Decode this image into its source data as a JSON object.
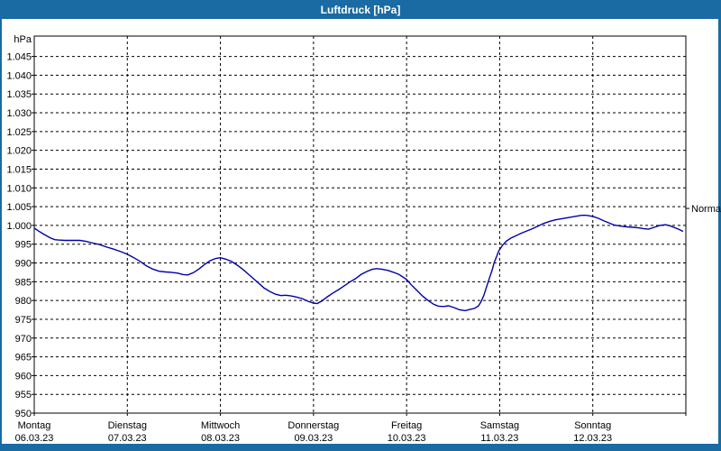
{
  "window": {
    "title": "Luftdruck [hPa]"
  },
  "colors": {
    "frame": "#1a6aa3",
    "title_text": "#ffffff",
    "plot_background": "#ffffff",
    "grid": "#000000",
    "axis": "#000000",
    "label_text": "#000000",
    "line": "#0000a8"
  },
  "axes": {
    "unit_label": "hPa",
    "y_ticks": [
      {
        "value": 1045,
        "label": "1.045"
      },
      {
        "value": 1040,
        "label": "1.040"
      },
      {
        "value": 1035,
        "label": "1.035"
      },
      {
        "value": 1030,
        "label": "1.030"
      },
      {
        "value": 1025,
        "label": "1.025"
      },
      {
        "value": 1020,
        "label": "1.020"
      },
      {
        "value": 1015,
        "label": "1.015"
      },
      {
        "value": 1010,
        "label": "1.010"
      },
      {
        "value": 1005,
        "label": "1.005"
      },
      {
        "value": 1000,
        "label": "1.000"
      },
      {
        "value": 995,
        "label": "995"
      },
      {
        "value": 990,
        "label": "990"
      },
      {
        "value": 985,
        "label": "985"
      },
      {
        "value": 980,
        "label": "980"
      },
      {
        "value": 975,
        "label": "975"
      },
      {
        "value": 970,
        "label": "970"
      },
      {
        "value": 965,
        "label": "965"
      },
      {
        "value": 960,
        "label": "960"
      },
      {
        "value": 955,
        "label": "955"
      },
      {
        "value": 950,
        "label": "950"
      }
    ],
    "x_days": [
      {
        "name": "Montag",
        "date": "06.03.23"
      },
      {
        "name": "Dienstag",
        "date": "07.03.23"
      },
      {
        "name": "Mittwoch",
        "date": "08.03.23"
      },
      {
        "name": "Donnerstag",
        "date": "09.03.23"
      },
      {
        "name": "Freitag",
        "date": "10.03.23"
      },
      {
        "name": "Samstag",
        "date": "11.03.23"
      },
      {
        "name": "Sonntag",
        "date": "12.03.23"
      }
    ]
  },
  "annotations": {
    "normal": {
      "label": "Normal",
      "value": 1005
    }
  },
  "chart_data": {
    "type": "line",
    "title": "Luftdruck [hPa]",
    "ylabel": "hPa",
    "ylim": [
      950,
      1045
    ],
    "y_step": 5,
    "grid": "dashed",
    "x_range_days": [
      0,
      7
    ],
    "x_categories": [
      "Montag 06.03.23",
      "Dienstag 07.03.23",
      "Mittwoch 08.03.23",
      "Donnerstag 09.03.23",
      "Freitag 10.03.23",
      "Samstag 11.03.23",
      "Sonntag 12.03.23"
    ],
    "annotations": [
      {
        "label": "Normal",
        "y": 1005,
        "side": "right"
      }
    ],
    "series": [
      {
        "name": "Luftdruck",
        "color": "#0000a8",
        "points": [
          [
            0.0,
            999.3
          ],
          [
            0.04,
            998.6
          ],
          [
            0.1,
            997.7
          ],
          [
            0.17,
            996.7
          ],
          [
            0.22,
            996.2
          ],
          [
            0.26,
            996.1
          ],
          [
            0.33,
            996.0
          ],
          [
            0.41,
            996.0
          ],
          [
            0.49,
            996.0
          ],
          [
            0.55,
            995.8
          ],
          [
            0.63,
            995.3
          ],
          [
            0.7,
            994.9
          ],
          [
            0.78,
            994.2
          ],
          [
            0.85,
            993.7
          ],
          [
            0.93,
            993.0
          ],
          [
            1.0,
            992.3
          ],
          [
            1.07,
            991.4
          ],
          [
            1.14,
            990.4
          ],
          [
            1.2,
            989.3
          ],
          [
            1.27,
            988.4
          ],
          [
            1.34,
            987.8
          ],
          [
            1.41,
            987.6
          ],
          [
            1.47,
            987.5
          ],
          [
            1.54,
            987.3
          ],
          [
            1.6,
            986.9
          ],
          [
            1.65,
            986.8
          ],
          [
            1.71,
            987.4
          ],
          [
            1.77,
            988.4
          ],
          [
            1.83,
            989.6
          ],
          [
            1.89,
            990.6
          ],
          [
            1.95,
            991.2
          ],
          [
            2.0,
            991.4
          ],
          [
            2.06,
            991.0
          ],
          [
            2.12,
            990.4
          ],
          [
            2.18,
            989.4
          ],
          [
            2.24,
            988.3
          ],
          [
            2.3,
            987.0
          ],
          [
            2.36,
            985.7
          ],
          [
            2.42,
            984.4
          ],
          [
            2.47,
            983.3
          ],
          [
            2.53,
            982.4
          ],
          [
            2.59,
            981.7
          ],
          [
            2.65,
            981.3
          ],
          [
            2.7,
            981.4
          ],
          [
            2.76,
            981.2
          ],
          [
            2.82,
            980.9
          ],
          [
            2.88,
            980.5
          ],
          [
            2.94,
            979.8
          ],
          [
            3.0,
            979.3
          ],
          [
            3.04,
            979.2
          ],
          [
            3.09,
            979.9
          ],
          [
            3.15,
            981.0
          ],
          [
            3.21,
            982.0
          ],
          [
            3.27,
            982.9
          ],
          [
            3.33,
            983.9
          ],
          [
            3.39,
            984.9
          ],
          [
            3.45,
            985.8
          ],
          [
            3.51,
            986.9
          ],
          [
            3.57,
            987.7
          ],
          [
            3.63,
            988.3
          ],
          [
            3.68,
            988.5
          ],
          [
            3.74,
            988.3
          ],
          [
            3.8,
            988.0
          ],
          [
            3.86,
            987.5
          ],
          [
            3.92,
            986.9
          ],
          [
            4.0,
            985.6
          ],
          [
            4.05,
            984.2
          ],
          [
            4.11,
            982.7
          ],
          [
            4.17,
            981.2
          ],
          [
            4.23,
            980.0
          ],
          [
            4.29,
            979.0
          ],
          [
            4.34,
            978.5
          ],
          [
            4.4,
            978.4
          ],
          [
            4.45,
            978.6
          ],
          [
            4.51,
            978.1
          ],
          [
            4.57,
            977.5
          ],
          [
            4.63,
            977.3
          ],
          [
            4.68,
            977.6
          ],
          [
            4.73,
            977.9
          ],
          [
            4.77,
            978.5
          ],
          [
            4.8,
            979.7
          ],
          [
            4.83,
            981.4
          ],
          [
            4.86,
            983.7
          ],
          [
            4.89,
            986.0
          ],
          [
            4.92,
            988.2
          ],
          [
            4.94,
            990.0
          ],
          [
            4.97,
            991.9
          ],
          [
            4.99,
            993.2
          ],
          [
            5.03,
            994.7
          ],
          [
            5.07,
            995.8
          ],
          [
            5.12,
            996.6
          ],
          [
            5.18,
            997.3
          ],
          [
            5.23,
            997.9
          ],
          [
            5.29,
            998.5
          ],
          [
            5.35,
            999.1
          ],
          [
            5.41,
            999.8
          ],
          [
            5.47,
            1000.5
          ],
          [
            5.54,
            1001.1
          ],
          [
            5.6,
            1001.5
          ],
          [
            5.67,
            1001.8
          ],
          [
            5.74,
            1002.1
          ],
          [
            5.81,
            1002.4
          ],
          [
            5.88,
            1002.7
          ],
          [
            5.93,
            1002.7
          ],
          [
            6.0,
            1002.4
          ],
          [
            6.06,
            1001.9
          ],
          [
            6.12,
            1001.2
          ],
          [
            6.18,
            1000.6
          ],
          [
            6.23,
            1000.1
          ],
          [
            6.3,
            999.8
          ],
          [
            6.37,
            999.6
          ],
          [
            6.44,
            999.5
          ],
          [
            6.51,
            999.3
          ],
          [
            6.55,
            999.1
          ],
          [
            6.6,
            999.0
          ],
          [
            6.66,
            999.5
          ],
          [
            6.72,
            1000.0
          ],
          [
            6.78,
            1000.2
          ],
          [
            6.83,
            999.9
          ],
          [
            6.88,
            999.4
          ],
          [
            6.93,
            998.9
          ],
          [
            6.97,
            998.4
          ]
        ]
      }
    ]
  }
}
